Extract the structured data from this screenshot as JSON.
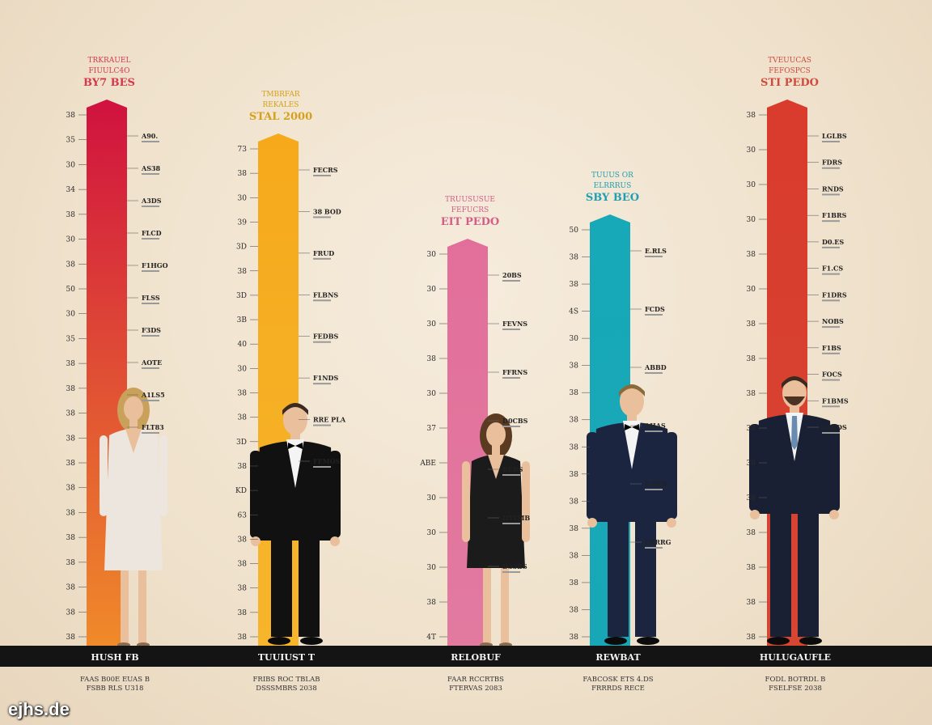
{
  "watermark": "ejhs.de",
  "colors": {
    "background": "#efe1cb",
    "baseline_bar": "#141414",
    "crimson": "#d0123f",
    "amber": "#f6a91b",
    "pink": "#e26f9a",
    "teal": "#17a9b8",
    "red": "#d93b2c"
  },
  "chart_data": {
    "type": "bar",
    "categories": [
      "HUSH FB",
      "TUUIUST T",
      "RELOBUF",
      "REWBAT",
      "HULUGAUFLE"
    ],
    "values": [
      675,
      633,
      503,
      533,
      675
    ],
    "ylim": [
      0,
      700
    ],
    "grid": false,
    "figures": [
      {
        "icon": "woman-white-dress-icon",
        "gender": "woman",
        "outfit": "white-dress"
      },
      {
        "icon": "man-tuxedo-icon",
        "gender": "man",
        "outfit": "black-tuxedo"
      },
      {
        "icon": "woman-black-dress-icon",
        "gender": "woman",
        "outfit": "black-dress"
      },
      {
        "icon": "man-navy-suit-icon",
        "gender": "man",
        "outfit": "navy-suit"
      },
      {
        "icon": "man-dark-suit-icon",
        "gender": "man",
        "outfit": "dark-suit-beard"
      }
    ],
    "bars": [
      {
        "color": "#d0123f",
        "color_bottom": "#f08a2a",
        "title_color": "#d13a4c",
        "title_lines": [
          "TRKRAUEL",
          "FIUULC4O",
          "BY7 BES"
        ],
        "tick_labels": [
          "38",
          "35",
          "30",
          "34",
          "38",
          "30",
          "38",
          "50",
          "30",
          "35",
          "38",
          "38",
          "38",
          "38",
          "38",
          "38",
          "38",
          "38",
          "38",
          "38",
          "38",
          "38"
        ],
        "annotations": [
          "A90.",
          "AS38",
          "A3DS",
          "FLCD",
          "F1HGO",
          "FLSS",
          "F3DS",
          "AOTE",
          "A1LS5",
          "FLT83"
        ],
        "caption": [
          "FAAS B00E EUAS B",
          "FSBB RLS U318"
        ]
      },
      {
        "color": "#f6a91b",
        "color_bottom": "#f7b52c",
        "title_color": "#d5a01a",
        "title_lines": [
          "TMBRFAR",
          "REKALES",
          "STAL 2000"
        ],
        "tick_labels": [
          "73",
          "38",
          "30",
          "39",
          "3D",
          "38",
          "3D",
          "3B",
          "40",
          "30",
          "38",
          "38",
          "3D",
          "38",
          "KD",
          "63",
          "38",
          "38",
          "38",
          "38",
          "38"
        ],
        "annotations": [
          "FECRS",
          "38 BOD",
          "FRUD",
          "FLBNS",
          "FEDBS",
          "F1NDS",
          "RRE PLA",
          "FEMOS"
        ],
        "caption": [
          "FRIBS ROC TBLAB",
          "DSSSMBRS 2038"
        ]
      },
      {
        "color": "#e26f9a",
        "color_bottom": "#e27aa0",
        "title_color": "#d25e86",
        "title_lines": [
          "TRUUSUSUE",
          "FEFUCRS",
          "EIT PEDO"
        ],
        "tick_labels": [
          "30",
          "30",
          "30",
          "38",
          "30",
          "37",
          "ABE",
          "30",
          "30",
          "30",
          "38",
          "4T"
        ],
        "annotations": [
          "20BS",
          "FEVNS",
          "FFRNS",
          "D0CBS",
          "BEBS",
          "D5TMB",
          "D33BS"
        ],
        "caption": [
          "FAAR RCCRTBS",
          "FTERVAS 2083"
        ]
      },
      {
        "color": "#17a9b8",
        "color_bottom": "#18a7b7",
        "title_color": "#1f9fb1",
        "title_lines": [
          "TUUUS OR",
          "ELRRRUS",
          "SBY BEO"
        ],
        "tick_labels": [
          "50",
          "38",
          "38",
          "4S",
          "30",
          "38",
          "38",
          "38",
          "38",
          "38",
          "38",
          "38",
          "38",
          "38",
          "38",
          "38"
        ],
        "annotations": [
          "E.RLS",
          "FCDS",
          "ABBD",
          "AHAS",
          "P.DEB",
          "FRRRG"
        ],
        "caption": [
          "FABCOSK ETS 4.DS",
          "FRRRDS RECE"
        ]
      },
      {
        "color": "#d93b2c",
        "color_bottom": "#d74533",
        "title_color": "#cf4b3e",
        "title_lines": [
          "TVEUUCAS",
          "FEFOSPCS",
          "STI PEDO"
        ],
        "tick_labels": [
          "38",
          "30",
          "30",
          "30",
          "38",
          "30",
          "38",
          "38",
          "38",
          "38",
          "38",
          "38",
          "38",
          "38",
          "38",
          "38"
        ],
        "annotations": [
          "LGLBS",
          "FDRS",
          "RNDS",
          "F1BRS",
          "D0.ES",
          "F1.CS",
          "F1DRS",
          "NOBS",
          "F1BS",
          "FOCS",
          "F1BMS",
          "F1BDS"
        ],
        "caption": [
          "FODL BOTRDL B",
          "FSELFSE 2038"
        ]
      }
    ]
  }
}
